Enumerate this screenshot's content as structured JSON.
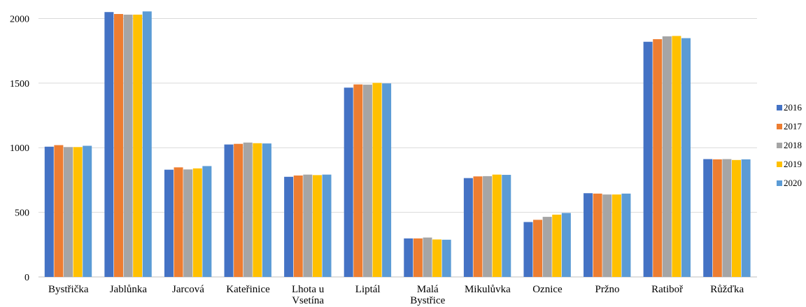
{
  "chart_data": {
    "type": "bar",
    "title": "",
    "xlabel": "",
    "ylabel": "",
    "ylim": [
      0,
      2100
    ],
    "yticks": [
      0,
      500,
      1000,
      1500,
      2000
    ],
    "grid": true,
    "legend_position": "right",
    "categories": [
      [
        "Bystřička"
      ],
      [
        "Jablůnka"
      ],
      [
        "Jarcová"
      ],
      [
        "Kateřinice"
      ],
      [
        "Lhota u",
        "Vsetína"
      ],
      [
        "Liptál"
      ],
      [
        "Malá",
        "Bystřice"
      ],
      [
        "Mikulůvka"
      ],
      [
        "Oznice"
      ],
      [
        "Pržno"
      ],
      [
        "Ratiboř"
      ],
      [
        "Růžďka"
      ]
    ],
    "series": [
      {
        "name": "2016",
        "color": "#4472c4",
        "values": [
          1008,
          2050,
          830,
          1025,
          775,
          1465,
          298,
          765,
          425,
          648,
          1820,
          912
        ]
      },
      {
        "name": "2017",
        "color": "#ed7d31",
        "values": [
          1020,
          2035,
          848,
          1030,
          785,
          1490,
          298,
          778,
          442,
          645,
          1840,
          910
        ]
      },
      {
        "name": "2018",
        "color": "#a5a5a5",
        "values": [
          1005,
          2030,
          832,
          1040,
          792,
          1488,
          305,
          780,
          465,
          638,
          1862,
          912
        ]
      },
      {
        "name": "2019",
        "color": "#ffc000",
        "values": [
          1005,
          2030,
          840,
          1035,
          788,
          1502,
          290,
          792,
          482,
          638,
          1865,
          905
        ]
      },
      {
        "name": "2020",
        "color": "#5b9bd5",
        "values": [
          1015,
          2055,
          858,
          1033,
          792,
          1498,
          288,
          790,
          495,
          645,
          1848,
          910
        ]
      }
    ]
  }
}
